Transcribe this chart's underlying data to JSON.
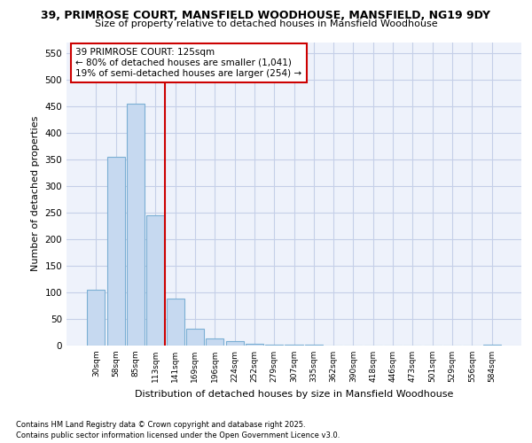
{
  "title1": "39, PRIMROSE COURT, MANSFIELD WOODHOUSE, MANSFIELD, NG19 9DY",
  "title2": "Size of property relative to detached houses in Mansfield Woodhouse",
  "xlabel": "Distribution of detached houses by size in Mansfield Woodhouse",
  "ylabel": "Number of detached properties",
  "categories": [
    "30sqm",
    "58sqm",
    "85sqm",
    "113sqm",
    "141sqm",
    "169sqm",
    "196sqm",
    "224sqm",
    "252sqm",
    "279sqm",
    "307sqm",
    "335sqm",
    "362sqm",
    "390sqm",
    "418sqm",
    "446sqm",
    "473sqm",
    "501sqm",
    "529sqm",
    "556sqm",
    "584sqm"
  ],
  "values": [
    105,
    355,
    455,
    245,
    88,
    32,
    14,
    8,
    4,
    2,
    1,
    1,
    0,
    0,
    0,
    0,
    0,
    0,
    0,
    0,
    2
  ],
  "bar_color": "#c6d9f0",
  "bar_edge_color": "#7bafd4",
  "vline_x": 3.5,
  "vline_color": "#cc0000",
  "annotation_text": "39 PRIMROSE COURT: 125sqm\n← 80% of detached houses are smaller (1,041)\n19% of semi-detached houses are larger (254) →",
  "annotation_box_color": "white",
  "annotation_box_edge": "#cc0000",
  "ylim": [
    0,
    570
  ],
  "yticks": [
    0,
    50,
    100,
    150,
    200,
    250,
    300,
    350,
    400,
    450,
    500,
    550
  ],
  "footer": "Contains HM Land Registry data © Crown copyright and database right 2025.\nContains public sector information licensed under the Open Government Licence v3.0.",
  "bg_color": "#eef2fb",
  "grid_color": "#c5cfe8"
}
